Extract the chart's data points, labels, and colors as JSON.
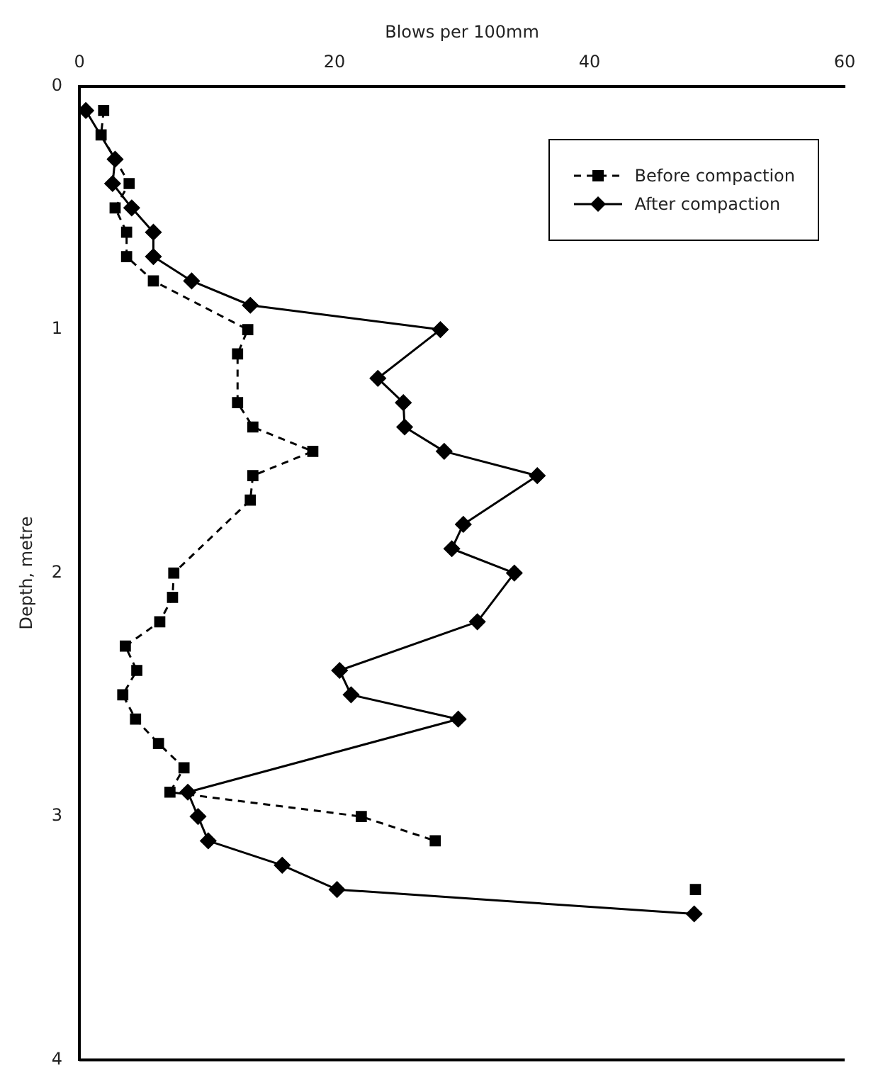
{
  "chart_data": {
    "type": "line",
    "xlabel": "Blows per 100mm",
    "ylabel": "Depth, metre",
    "xlim": [
      0,
      60
    ],
    "xticks": [
      0,
      20,
      40,
      60
    ],
    "ylim": [
      4,
      0
    ],
    "yticks": [
      0,
      1,
      2,
      3,
      4
    ],
    "grid": false,
    "legend": "top right",
    "series": [
      {
        "name": "Before compaction",
        "color": "#000000",
        "marker": "square",
        "line_style": "dashed",
        "x": [
          1.9,
          1.7,
          3.9,
          2.8,
          3.7,
          3.7,
          5.8,
          13.2,
          12.4,
          12.4,
          13.6,
          18.3,
          13.6,
          13.4,
          7.4,
          7.3,
          6.3,
          3.6,
          4.5,
          3.4,
          4.4,
          6.2,
          8.2,
          7.1,
          22.1,
          27.9,
          null,
          48.3
        ],
        "values": [
          0.1,
          0.2,
          0.4,
          0.5,
          0.6,
          0.7,
          0.8,
          1.0,
          1.1,
          1.3,
          1.4,
          1.5,
          1.6,
          1.7,
          2.0,
          2.1,
          2.2,
          2.3,
          2.4,
          2.5,
          2.6,
          2.7,
          2.8,
          2.9,
          3.0,
          3.1,
          null,
          3.3
        ]
      },
      {
        "name": "After compaction",
        "color": "#000000",
        "marker": "diamond",
        "line_style": "solid",
        "x": [
          0.5,
          2.8,
          2.6,
          4.1,
          5.8,
          5.8,
          8.8,
          13.4,
          28.3,
          23.4,
          25.4,
          25.5,
          28.6,
          35.9,
          30.1,
          29.2,
          34.1,
          31.2,
          20.4,
          21.3,
          29.7,
          8.5,
          9.3,
          10.1,
          15.9,
          20.2,
          48.2
        ],
        "values": [
          0.1,
          0.3,
          0.4,
          0.5,
          0.6,
          0.7,
          0.8,
          0.9,
          1.0,
          1.2,
          1.3,
          1.4,
          1.5,
          1.6,
          1.8,
          1.9,
          2.0,
          2.2,
          2.4,
          2.5,
          2.6,
          2.9,
          3.0,
          3.1,
          3.2,
          3.3,
          3.4
        ]
      }
    ]
  }
}
